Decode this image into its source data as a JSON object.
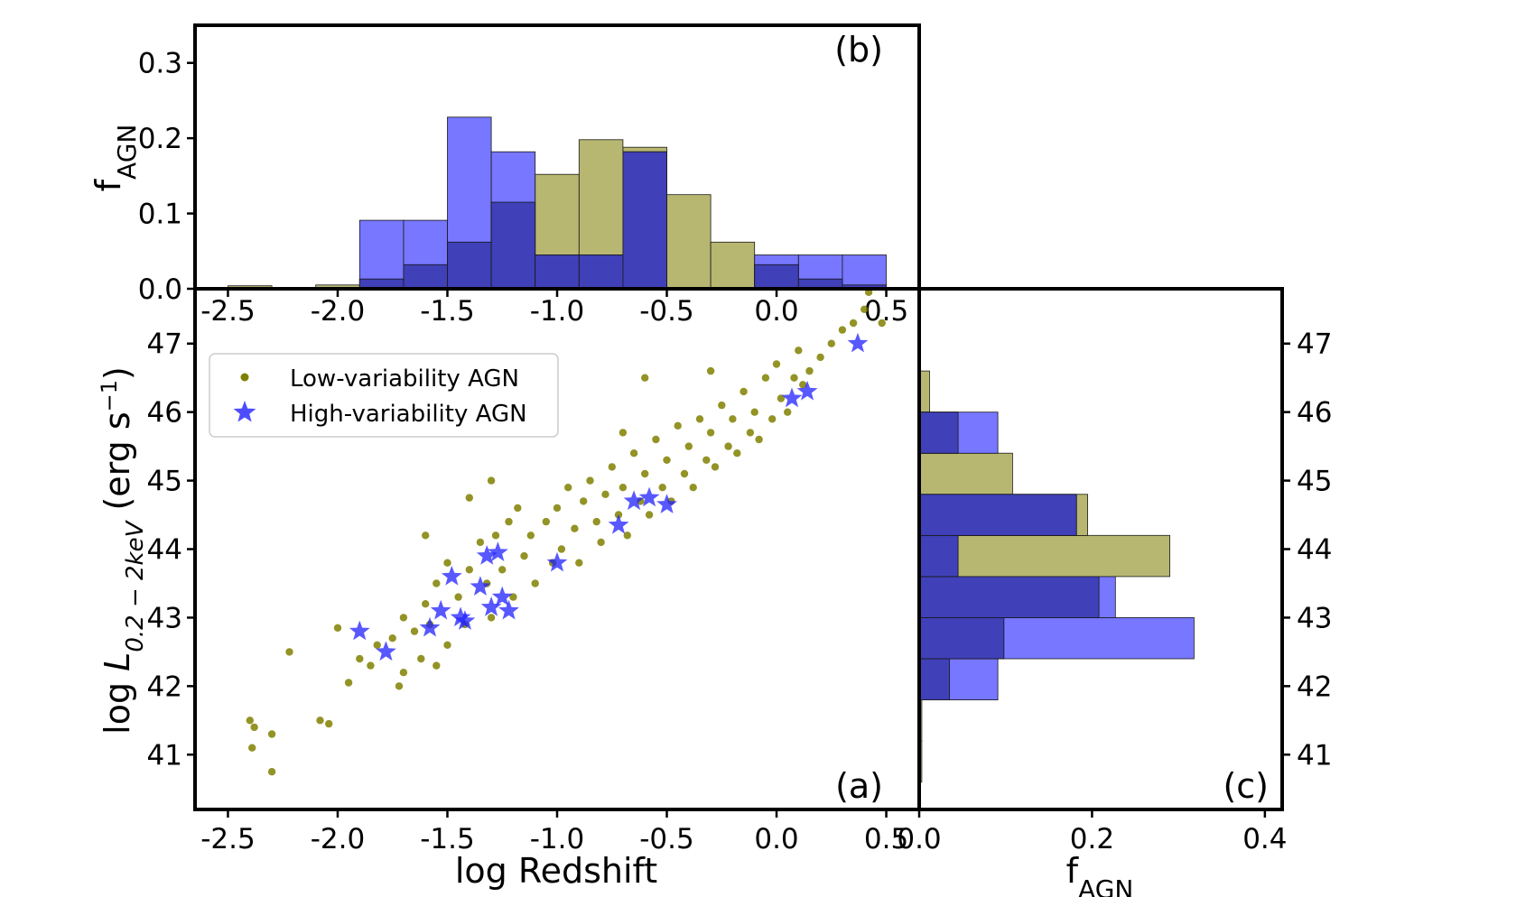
{
  "colors": {
    "low": "#808000",
    "high": "#2020ff",
    "low_hist": "#a6a54f",
    "high_hist": "#5555ff",
    "overlap": "#3a3ab0"
  },
  "panels": {
    "a": "(a)",
    "b": "(b)",
    "c": "(c)"
  },
  "chart_data": [
    {
      "type": "scatter",
      "panel": "a",
      "xlabel": "log Redshift",
      "ylabel_prefix": "log ",
      "ylabel_symbol": "L",
      "ylabel_subscript": "0.2 − 2keV",
      "ylabel_units": " (erg s",
      "ylabel_units_sup": "−1",
      "ylabel_units_close": ")",
      "xlim": [
        -2.65,
        0.65
      ],
      "ylim": [
        40.2,
        47.8
      ],
      "xticks": [
        "-2.5",
        "-2.0",
        "-1.5",
        "-1.0",
        "-0.5",
        "0.0",
        "0.5"
      ],
      "yticks": [
        "41",
        "42",
        "43",
        "44",
        "45",
        "46",
        "47"
      ],
      "legend": [
        "Low-variability AGN",
        "High-variability AGN"
      ],
      "legend_position": "upper-left",
      "series": [
        {
          "name": "Low-variability AGN",
          "marker": "circle",
          "points": [
            [
              -2.4,
              41.5
            ],
            [
              -2.39,
              41.1
            ],
            [
              -2.38,
              41.4
            ],
            [
              -2.3,
              40.75
            ],
            [
              -2.3,
              41.3
            ],
            [
              -2.22,
              42.5
            ],
            [
              -2.08,
              41.5
            ],
            [
              -2.04,
              41.45
            ],
            [
              -2.0,
              42.85
            ],
            [
              -1.95,
              42.05
            ],
            [
              -1.9,
              42.4
            ],
            [
              -1.85,
              42.3
            ],
            [
              -1.82,
              42.6
            ],
            [
              -1.75,
              42.7
            ],
            [
              -1.72,
              42.0
            ],
            [
              -1.7,
              43.0
            ],
            [
              -1.7,
              42.2
            ],
            [
              -1.65,
              42.8
            ],
            [
              -1.62,
              42.4
            ],
            [
              -1.6,
              43.2
            ],
            [
              -1.58,
              42.9
            ],
            [
              -1.55,
              43.5
            ],
            [
              -1.55,
              42.3
            ],
            [
              -1.5,
              43.8
            ],
            [
              -1.5,
              42.6
            ],
            [
              -1.45,
              43.3
            ],
            [
              -1.42,
              42.9
            ],
            [
              -1.4,
              43.7
            ],
            [
              -1.4,
              44.75
            ],
            [
              -1.35,
              44.1
            ],
            [
              -1.32,
              43.5
            ],
            [
              -1.3,
              43.0
            ],
            [
              -1.28,
              44.2
            ],
            [
              -1.25,
              43.7
            ],
            [
              -1.22,
              44.4
            ],
            [
              -1.2,
              43.3
            ],
            [
              -1.18,
              44.6
            ],
            [
              -1.15,
              43.9
            ],
            [
              -1.12,
              44.2
            ],
            [
              -1.1,
              43.5
            ],
            [
              -1.05,
              44.4
            ],
            [
              -1.02,
              43.8
            ],
            [
              -1.0,
              44.6
            ],
            [
              -0.98,
              44.0
            ],
            [
              -0.95,
              44.9
            ],
            [
              -0.92,
              44.3
            ],
            [
              -0.9,
              43.8
            ],
            [
              -0.88,
              44.7
            ],
            [
              -0.85,
              45.0
            ],
            [
              -0.82,
              44.4
            ],
            [
              -0.8,
              44.1
            ],
            [
              -0.78,
              44.8
            ],
            [
              -0.75,
              45.2
            ],
            [
              -0.72,
              44.5
            ],
            [
              -0.7,
              44.9
            ],
            [
              -0.68,
              44.2
            ],
            [
              -0.65,
              45.4
            ],
            [
              -0.62,
              44.7
            ],
            [
              -0.6,
              45.1
            ],
            [
              -0.58,
              44.5
            ],
            [
              -0.55,
              45.6
            ],
            [
              -0.52,
              44.9
            ],
            [
              -0.5,
              45.3
            ],
            [
              -0.48,
              44.7
            ],
            [
              -0.45,
              45.8
            ],
            [
              -0.42,
              45.1
            ],
            [
              -0.4,
              45.5
            ],
            [
              -0.38,
              44.9
            ],
            [
              -0.35,
              45.9
            ],
            [
              -0.32,
              45.3
            ],
            [
              -0.3,
              45.7
            ],
            [
              -0.28,
              45.2
            ],
            [
              -0.25,
              46.1
            ],
            [
              -0.22,
              45.5
            ],
            [
              -0.2,
              45.9
            ],
            [
              -0.18,
              45.4
            ],
            [
              -0.15,
              46.3
            ],
            [
              -0.12,
              45.7
            ],
            [
              -0.1,
              46.0
            ],
            [
              -0.08,
              45.6
            ],
            [
              -0.05,
              46.5
            ],
            [
              -0.02,
              45.9
            ],
            [
              0.0,
              46.7
            ],
            [
              0.02,
              46.2
            ],
            [
              0.05,
              46.0
            ],
            [
              0.08,
              46.5
            ],
            [
              0.1,
              46.9
            ],
            [
              0.12,
              46.4
            ],
            [
              0.15,
              46.6
            ],
            [
              0.2,
              46.8
            ],
            [
              0.25,
              47.0
            ],
            [
              0.3,
              47.2
            ],
            [
              0.35,
              47.3
            ],
            [
              0.4,
              47.5
            ],
            [
              0.42,
              47.75
            ],
            [
              0.48,
              47.3
            ],
            [
              -0.6,
              46.5
            ],
            [
              -0.7,
              45.7
            ],
            [
              -1.3,
              45.0
            ],
            [
              -1.6,
              44.2
            ],
            [
              -0.3,
              46.6
            ]
          ]
        },
        {
          "name": "High-variability AGN",
          "marker": "star",
          "points": [
            [
              -1.9,
              42.8
            ],
            [
              -1.78,
              42.5
            ],
            [
              -1.58,
              42.85
            ],
            [
              -1.53,
              43.1
            ],
            [
              -1.48,
              43.6
            ],
            [
              -1.44,
              43.0
            ],
            [
              -1.42,
              42.95
            ],
            [
              -1.35,
              43.45
            ],
            [
              -1.32,
              43.9
            ],
            [
              -1.3,
              43.15
            ],
            [
              -1.27,
              43.95
            ],
            [
              -1.25,
              43.3
            ],
            [
              -1.22,
              43.1
            ],
            [
              -1.0,
              43.8
            ],
            [
              -0.72,
              44.35
            ],
            [
              -0.65,
              44.7
            ],
            [
              -0.58,
              44.75
            ],
            [
              -0.5,
              44.65
            ],
            [
              0.07,
              46.2
            ],
            [
              0.14,
              46.3
            ],
            [
              0.37,
              47.0
            ]
          ]
        }
      ]
    },
    {
      "type": "bar",
      "panel": "b",
      "ylabel": "f",
      "ylabel_sub": "AGN",
      "xlim": [
        -2.65,
        0.65
      ],
      "ylim": [
        0,
        0.35
      ],
      "xticks": [
        "-2.5",
        "-2.0",
        "-1.5",
        "-1.0",
        "-0.5",
        "0.0",
        "0.5"
      ],
      "yticks": [
        "0.0",
        "0.1",
        "0.2",
        "0.3"
      ],
      "bin_edges": [
        -2.5,
        -2.3,
        -2.1,
        -1.9,
        -1.7,
        -1.5,
        -1.3,
        -1.1,
        -0.9,
        -0.7,
        -0.5,
        -0.3,
        -0.1,
        0.1,
        0.3,
        0.5
      ],
      "series": [
        {
          "name": "Low-variability AGN",
          "values": [
            0.004,
            0.0,
            0.005,
            0.013,
            0.032,
            0.062,
            0.115,
            0.152,
            0.198,
            0.188,
            0.125,
            0.062,
            0.032,
            0.013,
            0.005
          ]
        },
        {
          "name": "High-variability AGN",
          "values": [
            0.0,
            0.0,
            0.0,
            0.091,
            0.091,
            0.228,
            0.182,
            0.045,
            0.045,
            0.182,
            0.0,
            0.0,
            0.045,
            0.045,
            0.045
          ]
        }
      ]
    },
    {
      "type": "bar",
      "orientation": "horizontal",
      "panel": "c",
      "xlabel": "f",
      "xlabel_sub": "AGN",
      "xlim": [
        0,
        0.42
      ],
      "ylim": [
        40.2,
        47.8
      ],
      "xticks": [
        "0.0",
        "0.2",
        "0.4"
      ],
      "yticks": [
        "41",
        "42",
        "43",
        "44",
        "45",
        "46",
        "47"
      ],
      "bin_edges": [
        40.6,
        41.2,
        41.8,
        42.4,
        43.0,
        43.6,
        44.2,
        44.8,
        45.4,
        46.0,
        46.6,
        47.2
      ],
      "series": [
        {
          "name": "Low-variability AGN",
          "values": [
            0.003,
            0.003,
            0.035,
            0.098,
            0.208,
            0.29,
            0.195,
            0.108,
            0.045,
            0.012,
            0.0
          ]
        },
        {
          "name": "High-variability AGN",
          "values": [
            0.0,
            0.0,
            0.091,
            0.318,
            0.227,
            0.045,
            0.182,
            0.0,
            0.091,
            0.0,
            0.0
          ]
        }
      ]
    }
  ]
}
